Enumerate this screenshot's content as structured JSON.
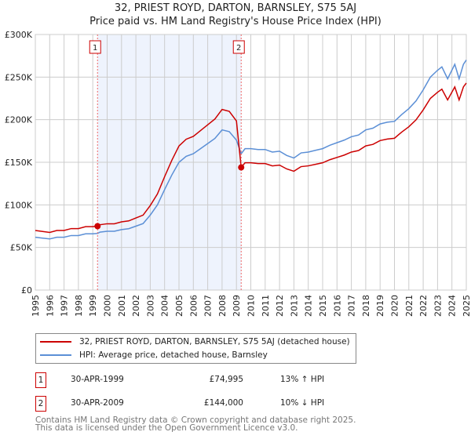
{
  "title": "32, PRIEST ROYD, DARTON, BARNSLEY, S75 5AJ",
  "subtitle": "Price paid vs. HM Land Registry's House Price Index (HPI)",
  "chart_data": {
    "type": "line",
    "title": "32, PRIEST ROYD, DARTON, BARNSLEY, S75 5AJ",
    "subtitle": "Price paid vs. HM Land Registry's House Price Index (HPI)",
    "xlim": [
      1995,
      2025
    ],
    "ylim": [
      0,
      300000
    ],
    "grid": true,
    "y_ticks": [
      {
        "v": 0,
        "label": "£0"
      },
      {
        "v": 50000,
        "label": "£50K"
      },
      {
        "v": 100000,
        "label": "£100K"
      },
      {
        "v": 150000,
        "label": "£150K"
      },
      {
        "v": 200000,
        "label": "£200K"
      },
      {
        "v": 250000,
        "label": "£250K"
      },
      {
        "v": 300000,
        "label": "£300K"
      }
    ],
    "x_ticks": [
      "1995",
      "1996",
      "1997",
      "1998",
      "1999",
      "2000",
      "2001",
      "2002",
      "2003",
      "2004",
      "2005",
      "2006",
      "2007",
      "2008",
      "2009",
      "2010",
      "2011",
      "2012",
      "2013",
      "2014",
      "2015",
      "2016",
      "2017",
      "2018",
      "2019",
      "2020",
      "2021",
      "2022",
      "2023",
      "2024",
      "2025"
    ],
    "shaded_range": [
      1999.33,
      2009.33
    ],
    "colors": {
      "property": "#cc0000",
      "hpi": "#5b8fd6",
      "shade": "#eef3fd"
    },
    "hpi_series": {
      "name": "HPI: Average price, detached house, Barnsley",
      "x": [
        1995,
        1995.5,
        1996,
        1996.5,
        1997,
        1997.5,
        1998,
        1998.5,
        1999,
        1999.33,
        1999.5,
        2000,
        2000.5,
        2001,
        2001.5,
        2002,
        2002.5,
        2003,
        2003.5,
        2004,
        2004.5,
        2005,
        2005.5,
        2006,
        2006.5,
        2007,
        2007.5,
        2008,
        2008.5,
        2009,
        2009.33,
        2009.6,
        2010,
        2010.5,
        2011,
        2011.5,
        2012,
        2012.5,
        2013,
        2013.5,
        2014,
        2014.5,
        2015,
        2015.5,
        2016,
        2016.5,
        2017,
        2017.5,
        2018,
        2018.5,
        2019,
        2019.5,
        2020,
        2020.5,
        2021,
        2021.5,
        2022,
        2022.5,
        2023,
        2023.3,
        2023.7,
        2024.2,
        2024.5,
        2024.8,
        2025
      ],
      "y": [
        62000,
        61000,
        60000,
        62000,
        62000,
        64000,
        64000,
        66000,
        66000,
        66500,
        68000,
        69000,
        69000,
        71000,
        72000,
        75000,
        78000,
        88000,
        100000,
        118000,
        135000,
        150000,
        157000,
        160000,
        166000,
        172000,
        178000,
        188000,
        186000,
        176000,
        160000,
        166000,
        166000,
        165000,
        165000,
        162000,
        163000,
        158000,
        155000,
        161000,
        162000,
        164000,
        166000,
        170000,
        173000,
        176000,
        180000,
        182000,
        188000,
        190000,
        195000,
        197000,
        198000,
        206000,
        213000,
        222000,
        235000,
        250000,
        258000,
        262000,
        248000,
        265000,
        248000,
        265000,
        270000
      ]
    },
    "property_series": {
      "name": "32, PRIEST ROYD, DARTON, BARNSLEY, S75 5AJ (detached house)"
    },
    "sales": [
      {
        "num": "1",
        "year": 1999.33,
        "date": "30-APR-1999",
        "price": 74995,
        "price_label": "£74,995",
        "hpi_label": "13% ↑ HPI"
      },
      {
        "num": "2",
        "year": 2009.33,
        "date": "30-APR-2009",
        "price": 144000,
        "price_label": "£144,000",
        "hpi_label": "10% ↓ HPI"
      }
    ]
  },
  "footer": {
    "line1": "Contains HM Land Registry data © Crown copyright and database right 2025.",
    "line2": "This data is licensed under the Open Government Licence v3.0."
  }
}
